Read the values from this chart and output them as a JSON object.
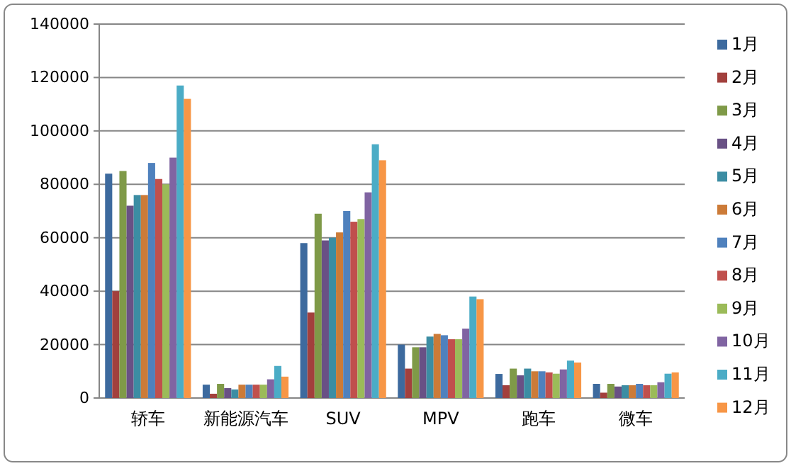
{
  "chart_data": {
    "type": "bar",
    "categories": [
      "轿车",
      "新能源汽车",
      "SUV",
      "MPV",
      "跑车",
      "微车"
    ],
    "series": [
      {
        "name": "1月",
        "color": "#3d6a9e",
        "values": [
          84000,
          5000,
          58000,
          20000,
          9000,
          5300
        ]
      },
      {
        "name": "2月",
        "color": "#a2403d",
        "values": [
          40000,
          1600,
          32000,
          11000,
          4800,
          2000
        ]
      },
      {
        "name": "3月",
        "color": "#7f9a48",
        "values": [
          85000,
          5300,
          69000,
          19000,
          11000,
          5300
        ]
      },
      {
        "name": "4月",
        "color": "#695185",
        "values": [
          72000,
          3700,
          59000,
          19000,
          8500,
          4300
        ]
      },
      {
        "name": "5月",
        "color": "#3c8da3",
        "values": [
          76000,
          3200,
          60000,
          23000,
          11000,
          4800
        ]
      },
      {
        "name": "6月",
        "color": "#cc7b38",
        "values": [
          76000,
          5000,
          62000,
          24000,
          10000,
          4800
        ]
      },
      {
        "name": "7月",
        "color": "#4f81bd",
        "values": [
          88000,
          5000,
          70000,
          23500,
          10000,
          5300
        ]
      },
      {
        "name": "8月",
        "color": "#c0504d",
        "values": [
          82000,
          5000,
          66000,
          22000,
          9600,
          4800
        ]
      },
      {
        "name": "9月",
        "color": "#9bbb59",
        "values": [
          80000,
          5000,
          67000,
          22000,
          9100,
          4800
        ]
      },
      {
        "name": "10月",
        "color": "#8064a2",
        "values": [
          90000,
          7000,
          77000,
          26000,
          10700,
          5900
        ]
      },
      {
        "name": "11月",
        "color": "#4bacc6",
        "values": [
          117000,
          12000,
          95000,
          38000,
          14000,
          9100
        ]
      },
      {
        "name": "12月",
        "color": "#f79646",
        "values": [
          112000,
          8000,
          89000,
          37000,
          13300,
          9600
        ]
      }
    ],
    "ylim": [
      0,
      140000
    ],
    "yticks": [
      0,
      20000,
      40000,
      60000,
      80000,
      100000,
      120000,
      140000
    ],
    "grid": "y",
    "legend": "right"
  }
}
